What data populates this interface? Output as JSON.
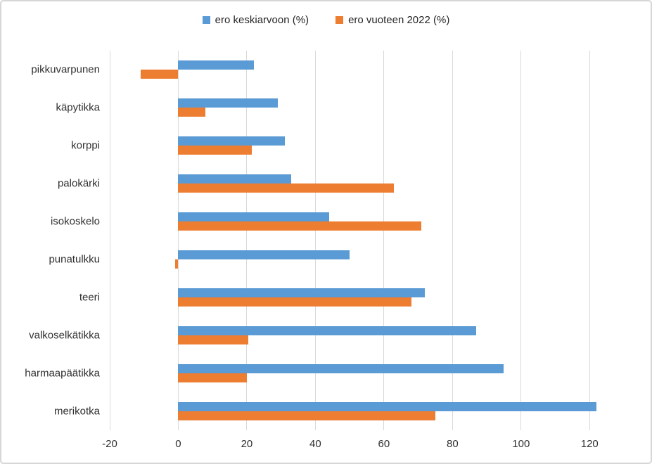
{
  "colors": {
    "series_blue": "#5B9BD5",
    "series_orange": "#ED7D31",
    "gridline": "#D9D9D9",
    "axis_text": "#303030",
    "chart_border": "#D6D6D6"
  },
  "legend": {
    "items": [
      {
        "label": "ero keskiarvoon (%)",
        "color": "#5B9BD5"
      },
      {
        "label": "ero vuoteen 2022 (%)",
        "color": "#ED7D31"
      }
    ]
  },
  "chart_data": {
    "type": "bar",
    "orientation": "horizontal",
    "title": "",
    "xlabel": "",
    "ylabel": "",
    "categories": [
      "pikkuvarpunen",
      "käpytikka",
      "korppi",
      "palokärki",
      "isokoskelo",
      "punatulkku",
      "teeri",
      "valkoselkätikka",
      "harmaapäätikka",
      "merikotka"
    ],
    "series": [
      {
        "name": "ero keskiarvoon (%)",
        "color": "#5B9BD5",
        "values": [
          22,
          29,
          31,
          33,
          44,
          50,
          72,
          87,
          95,
          122
        ]
      },
      {
        "name": "ero vuoteen 2022 (%)",
        "color": "#ED7D31",
        "values": [
          -11,
          8,
          21.5,
          63,
          71,
          -1,
          68,
          20.5,
          20,
          75
        ]
      }
    ],
    "xlim": [
      -20,
      130
    ],
    "xticks": [
      -20,
      0,
      20,
      40,
      60,
      80,
      100,
      120
    ],
    "grid": "vertical-major",
    "legend_position": "top-center"
  }
}
